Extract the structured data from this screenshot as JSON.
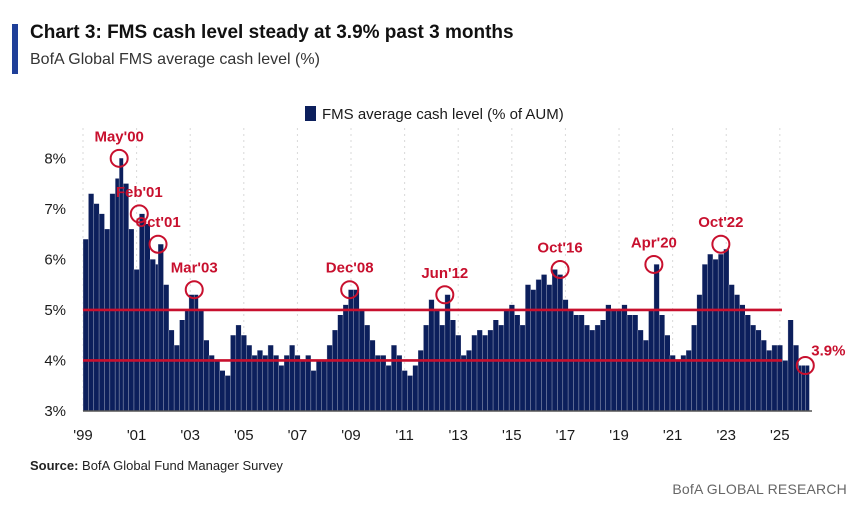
{
  "header": {
    "title": "Chart 3: FMS cash level steady at 3.9% past 3 months",
    "subtitle": "BofA Global FMS average cash level (%)"
  },
  "footer": {
    "source_label": "Source:",
    "source_text": "BofA Global Fund Manager Survey",
    "brand": "BofA GLOBAL RESEARCH"
  },
  "colors": {
    "bar": "#0c1f5c",
    "highlight": "#c8102e",
    "axis": "#555555",
    "grid": "#d9d9d9"
  },
  "chart_data": {
    "type": "bar",
    "legend": {
      "label": "FMS average cash level (% of AUM)",
      "position": "top"
    },
    "xlim": [
      1999.0,
      2026.2
    ],
    "ylim": [
      3,
      8.6
    ],
    "y_ticks": [
      3,
      4,
      5,
      6,
      7,
      8
    ],
    "y_tick_suffix": "%",
    "x_ticks": [
      {
        "label": "'99",
        "x": 1999.0
      },
      {
        "label": "'01",
        "x": 2001.0
      },
      {
        "label": "'03",
        "x": 2003.0
      },
      {
        "label": "'05",
        "x": 2005.0
      },
      {
        "label": "'07",
        "x": 2007.0
      },
      {
        "label": "'09",
        "x": 2009.0
      },
      {
        "label": "'11",
        "x": 2011.0
      },
      {
        "label": "'13",
        "x": 2013.0
      },
      {
        "label": "'15",
        "x": 2015.0
      },
      {
        "label": "'17",
        "x": 2017.0
      },
      {
        "label": "'19",
        "x": 2019.0
      },
      {
        "label": "'21",
        "x": 2021.0
      },
      {
        "label": "'23",
        "x": 2023.0
      },
      {
        "label": "'25",
        "x": 2025.0
      }
    ],
    "grid": "vertical-dotted",
    "reference_lines": [
      5.0,
      4.0
    ],
    "series": [
      {
        "name": "FMS average cash level (% of AUM)",
        "points": [
          [
            1999.0,
            6.4
          ],
          [
            1999.2,
            7.3
          ],
          [
            1999.4,
            7.1
          ],
          [
            1999.6,
            6.9
          ],
          [
            1999.8,
            6.6
          ],
          [
            2000.0,
            7.3
          ],
          [
            2000.2,
            7.6
          ],
          [
            2000.35,
            8.0
          ],
          [
            2000.5,
            7.5
          ],
          [
            2000.7,
            6.6
          ],
          [
            2000.9,
            5.8
          ],
          [
            2001.1,
            6.9
          ],
          [
            2001.3,
            6.7
          ],
          [
            2001.5,
            6.0
          ],
          [
            2001.7,
            5.9
          ],
          [
            2001.8,
            6.3
          ],
          [
            2002.0,
            5.5
          ],
          [
            2002.2,
            4.6
          ],
          [
            2002.4,
            4.3
          ],
          [
            2002.6,
            4.8
          ],
          [
            2002.8,
            5.0
          ],
          [
            2002.95,
            5.3
          ],
          [
            2003.15,
            5.3
          ],
          [
            2003.3,
            5.0
          ],
          [
            2003.5,
            4.4
          ],
          [
            2003.7,
            4.1
          ],
          [
            2003.9,
            4.0
          ],
          [
            2004.1,
            3.8
          ],
          [
            2004.3,
            3.7
          ],
          [
            2004.5,
            4.5
          ],
          [
            2004.7,
            4.7
          ],
          [
            2004.9,
            4.5
          ],
          [
            2005.1,
            4.3
          ],
          [
            2005.3,
            4.1
          ],
          [
            2005.5,
            4.2
          ],
          [
            2005.7,
            4.1
          ],
          [
            2005.9,
            4.3
          ],
          [
            2006.1,
            4.1
          ],
          [
            2006.3,
            3.9
          ],
          [
            2006.5,
            4.1
          ],
          [
            2006.7,
            4.3
          ],
          [
            2006.9,
            4.1
          ],
          [
            2007.1,
            4.0
          ],
          [
            2007.3,
            4.1
          ],
          [
            2007.5,
            3.8
          ],
          [
            2007.7,
            4.0
          ],
          [
            2007.9,
            4.0
          ],
          [
            2008.1,
            4.3
          ],
          [
            2008.3,
            4.6
          ],
          [
            2008.5,
            4.9
          ],
          [
            2008.7,
            5.1
          ],
          [
            2008.9,
            5.4
          ],
          [
            2009.1,
            5.4
          ],
          [
            2009.3,
            5.0
          ],
          [
            2009.5,
            4.7
          ],
          [
            2009.7,
            4.4
          ],
          [
            2009.9,
            4.1
          ],
          [
            2010.1,
            4.1
          ],
          [
            2010.3,
            3.9
          ],
          [
            2010.5,
            4.3
          ],
          [
            2010.7,
            4.1
          ],
          [
            2010.9,
            3.8
          ],
          [
            2011.1,
            3.7
          ],
          [
            2011.3,
            3.9
          ],
          [
            2011.5,
            4.2
          ],
          [
            2011.7,
            4.7
          ],
          [
            2011.9,
            5.2
          ],
          [
            2012.1,
            5.0
          ],
          [
            2012.3,
            4.7
          ],
          [
            2012.5,
            5.3
          ],
          [
            2012.7,
            4.8
          ],
          [
            2012.9,
            4.5
          ],
          [
            2013.1,
            4.1
          ],
          [
            2013.3,
            4.2
          ],
          [
            2013.5,
            4.5
          ],
          [
            2013.7,
            4.6
          ],
          [
            2013.9,
            4.5
          ],
          [
            2014.1,
            4.6
          ],
          [
            2014.3,
            4.8
          ],
          [
            2014.5,
            4.7
          ],
          [
            2014.7,
            5.0
          ],
          [
            2014.9,
            5.1
          ],
          [
            2015.1,
            4.9
          ],
          [
            2015.3,
            4.7
          ],
          [
            2015.5,
            5.5
          ],
          [
            2015.7,
            5.4
          ],
          [
            2015.9,
            5.6
          ],
          [
            2016.1,
            5.7
          ],
          [
            2016.3,
            5.5
          ],
          [
            2016.5,
            5.8
          ],
          [
            2016.7,
            5.7
          ],
          [
            2016.9,
            5.2
          ],
          [
            2017.1,
            5.0
          ],
          [
            2017.3,
            4.9
          ],
          [
            2017.5,
            4.9
          ],
          [
            2017.7,
            4.7
          ],
          [
            2017.9,
            4.6
          ],
          [
            2018.1,
            4.7
          ],
          [
            2018.3,
            4.8
          ],
          [
            2018.5,
            5.1
          ],
          [
            2018.7,
            5.0
          ],
          [
            2018.9,
            5.0
          ],
          [
            2019.1,
            5.1
          ],
          [
            2019.3,
            4.9
          ],
          [
            2019.5,
            4.9
          ],
          [
            2019.7,
            4.6
          ],
          [
            2019.9,
            4.4
          ],
          [
            2020.1,
            5.0
          ],
          [
            2020.3,
            5.9
          ],
          [
            2020.5,
            4.9
          ],
          [
            2020.7,
            4.5
          ],
          [
            2020.9,
            4.1
          ],
          [
            2021.1,
            4.0
          ],
          [
            2021.3,
            4.1
          ],
          [
            2021.5,
            4.2
          ],
          [
            2021.7,
            4.7
          ],
          [
            2021.9,
            5.3
          ],
          [
            2022.1,
            5.9
          ],
          [
            2022.3,
            6.1
          ],
          [
            2022.5,
            6.0
          ],
          [
            2022.7,
            6.1
          ],
          [
            2022.9,
            6.2
          ],
          [
            2023.1,
            5.5
          ],
          [
            2023.3,
            5.3
          ],
          [
            2023.5,
            5.1
          ],
          [
            2023.7,
            4.9
          ],
          [
            2023.9,
            4.7
          ],
          [
            2024.1,
            4.6
          ],
          [
            2024.3,
            4.4
          ],
          [
            2024.5,
            4.2
          ],
          [
            2024.7,
            4.3
          ],
          [
            2024.9,
            4.3
          ],
          [
            2025.1,
            4.0
          ],
          [
            2025.3,
            4.8
          ],
          [
            2025.5,
            4.3
          ],
          [
            2025.7,
            3.9
          ],
          [
            2025.8,
            3.9
          ],
          [
            2025.95,
            3.9
          ]
        ]
      }
    ],
    "annotations": [
      {
        "label": "May'00",
        "x": 2000.35,
        "y": 8.0,
        "label_pos": "above"
      },
      {
        "label": "Feb'01",
        "x": 2001.1,
        "y": 6.9,
        "label_pos": "above"
      },
      {
        "label": "Oct'01",
        "x": 2001.8,
        "y": 6.3,
        "label_pos": "above"
      },
      {
        "label": "Mar'03",
        "x": 2003.15,
        "y": 5.4,
        "label_pos": "above"
      },
      {
        "label": "Dec'08",
        "x": 2008.95,
        "y": 5.4,
        "label_pos": "above"
      },
      {
        "label": "Jun'12",
        "x": 2012.5,
        "y": 5.3,
        "label_pos": "above"
      },
      {
        "label": "Oct'16",
        "x": 2016.8,
        "y": 5.8,
        "label_pos": "above"
      },
      {
        "label": "Apr'20",
        "x": 2020.3,
        "y": 5.9,
        "label_pos": "above"
      },
      {
        "label": "Oct'22",
        "x": 2022.8,
        "y": 6.3,
        "label_pos": "above"
      },
      {
        "label": "3.9%",
        "x": 2025.95,
        "y": 3.9,
        "label_pos": "right"
      }
    ]
  }
}
